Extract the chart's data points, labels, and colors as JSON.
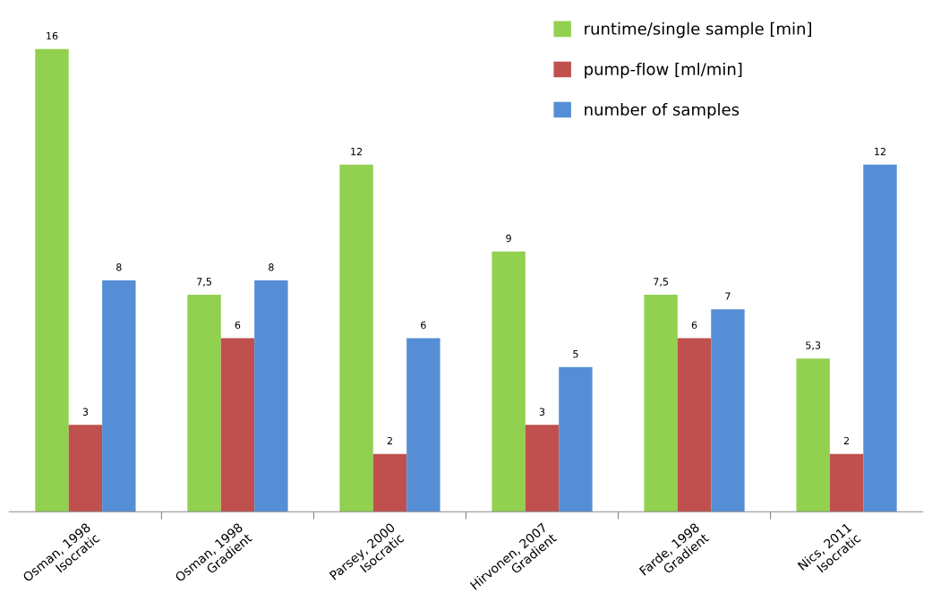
{
  "chart_data": {
    "type": "bar",
    "categories": [
      "Osman, 1998\nIsocratic",
      "Osman, 1998\nGradient",
      "Parsey, 2000\nIsocratic",
      "Hirvonen, 2007\nGradient",
      "Farde, 1998\nGradient",
      "Nics, 2011\nIsocratic"
    ],
    "series": [
      {
        "name": "runtime/single sample [min]",
        "color": "#92d050",
        "values": [
          16,
          7.5,
          12,
          9,
          7.5,
          5.3
        ],
        "value_labels": [
          "16",
          "7,5",
          "12",
          "9",
          "7,5",
          "5,3"
        ]
      },
      {
        "name": "pump-flow [ml/min]",
        "color": "#c0504d",
        "values": [
          3,
          6,
          2,
          3,
          6,
          2
        ],
        "value_labels": [
          "3",
          "6",
          "2",
          "3",
          "6",
          "2"
        ]
      },
      {
        "name": "number of samples",
        "color": "#558ed5",
        "values": [
          8,
          8,
          6,
          5,
          7,
          12
        ],
        "value_labels": [
          "8",
          "8",
          "6",
          "5",
          "7",
          "12"
        ]
      }
    ],
    "legend": "top right",
    "grid": false
  }
}
